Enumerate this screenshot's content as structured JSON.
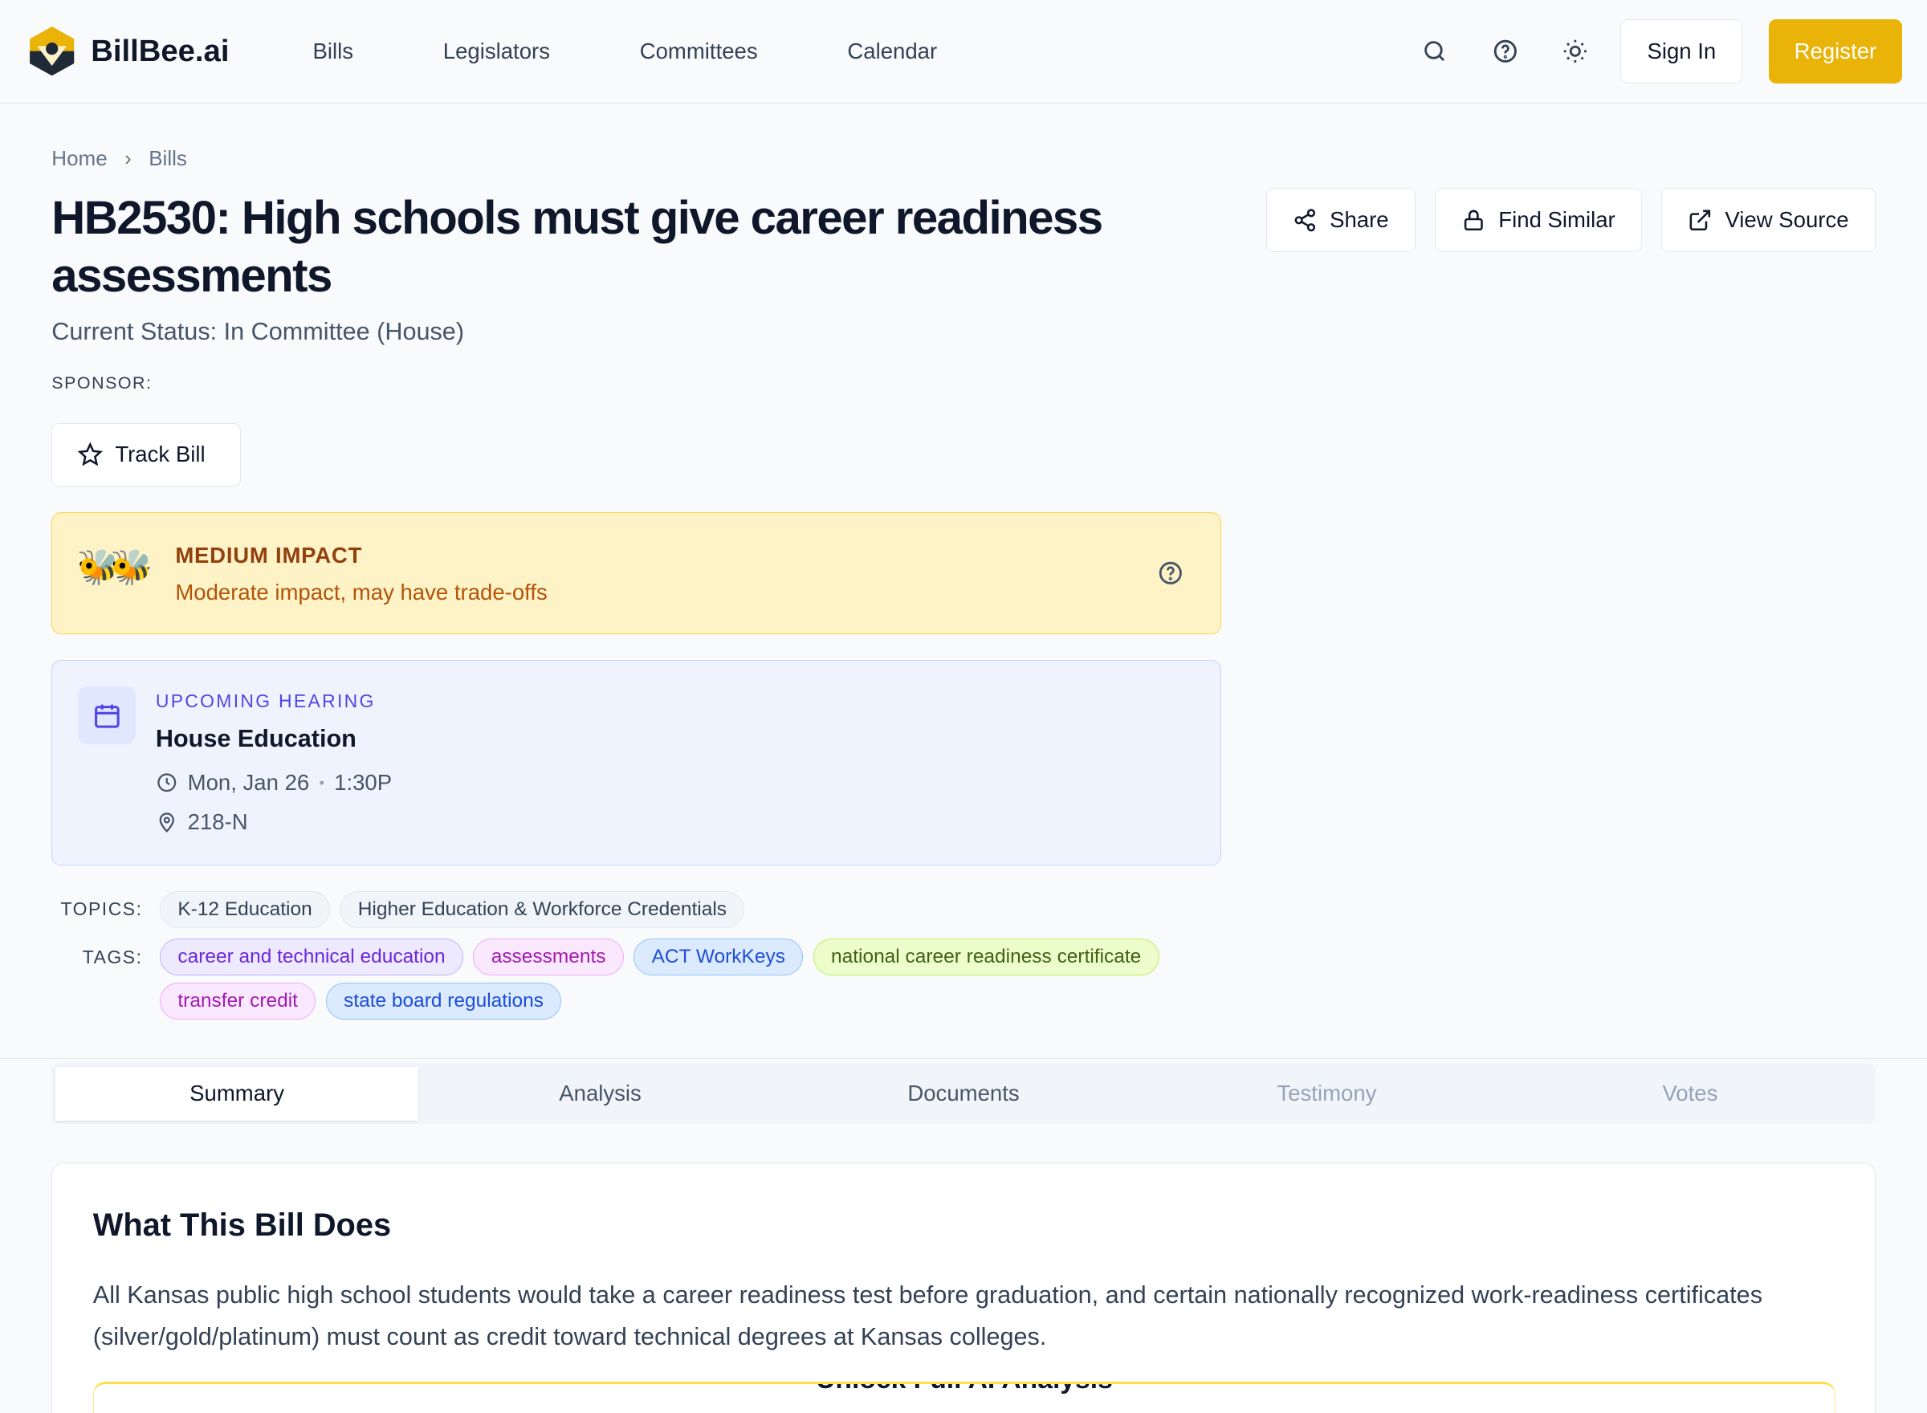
{
  "nav": {
    "brand": "BillBee.ai",
    "links": [
      "Bills",
      "Legislators",
      "Committees",
      "Calendar"
    ],
    "sign_in": "Sign In",
    "register": "Register",
    "accent": "#eab308"
  },
  "breadcrumb": [
    "Home",
    "Bills"
  ],
  "bill": {
    "title": "HB2530: High schools must give career readiness assessments",
    "status": "Current Status: In Committee (House)",
    "sponsor_label": "SPONSOR:",
    "track": "Track Bill"
  },
  "actions": {
    "share": "Share",
    "find_similar": "Find Similar",
    "view_source": "View Source"
  },
  "impact": {
    "icon": "🐝🐝",
    "level": "MEDIUM IMPACT",
    "desc": "Moderate impact, may have trade-offs"
  },
  "hearing": {
    "label": "UPCOMING HEARING",
    "committee": "House Education",
    "date": "Mon, Jan 26",
    "sep": "•",
    "time": "1:30P",
    "room": "218-N"
  },
  "topics": {
    "label": "TOPICS:",
    "items": [
      "K-12 Education",
      "Higher Education & Workforce Credentials"
    ]
  },
  "tags": {
    "label": "TAGS:",
    "items": [
      "career and technical education",
      "assessments",
      "ACT WorkKeys",
      "national career readiness certificate",
      "transfer credit",
      "state board regulations"
    ]
  },
  "tabs": [
    "Summary",
    "Analysis",
    "Documents",
    "Testimony",
    "Votes"
  ],
  "summary": {
    "heading": "What This Bill Does",
    "body": "All Kansas public high school students would take a career readiness test before graduation, and certain nationally recognized work-readiness certificates (silver/gold/platinum) must count as credit toward technical degrees at Kansas colleges.",
    "unlock": "Unlock Full AI Analysis"
  }
}
